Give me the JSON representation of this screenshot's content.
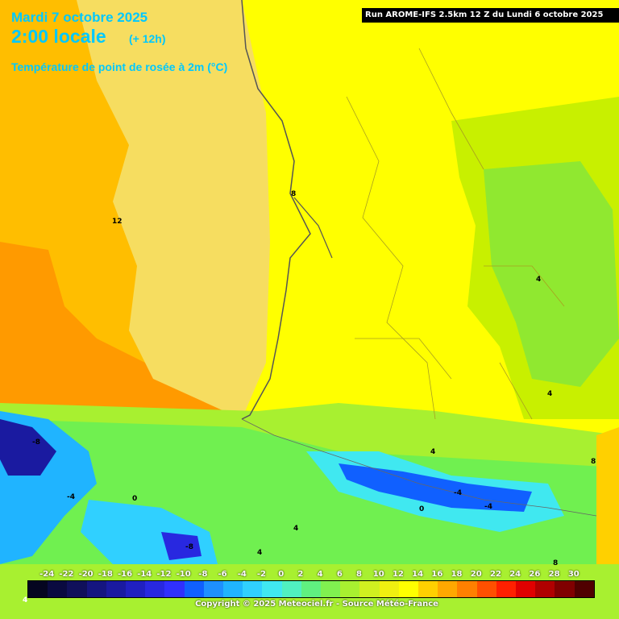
{
  "header": {
    "date": "Mardi 7 octobre 2025",
    "time": "2:00 locale",
    "offset": "(+ 12h)",
    "parameter": "Température de point de rosée à 2m (°C)"
  },
  "run_info": "Run AROME-IFS 2.5km 12 Z du Lundi 6 octobre 2025",
  "legend": {
    "ticks": [
      "-24",
      "-22",
      "-20",
      "-18",
      "-16",
      "-14",
      "-12",
      "-10",
      "-8",
      "-6",
      "-4",
      "-2",
      "0",
      "2",
      "4",
      "6",
      "8",
      "10",
      "12",
      "14",
      "16",
      "18",
      "20",
      "22",
      "24",
      "26",
      "28",
      "30"
    ],
    "colors": [
      "#050520",
      "#0a0a40",
      "#10105a",
      "#151580",
      "#1a1aa0",
      "#2020c0",
      "#2828e0",
      "#3030ff",
      "#1060ff",
      "#1e90ff",
      "#20b4ff",
      "#30d0ff",
      "#40e8f0",
      "#50f0c0",
      "#60f080",
      "#80f050",
      "#a8f030",
      "#d0f020",
      "#f0f010",
      "#ffff00",
      "#ffd000",
      "#ffa800",
      "#ff8000",
      "#ff5000",
      "#ff2000",
      "#e00000",
      "#b00000",
      "#800000",
      "#500000"
    ],
    "bottom_label": "4"
  },
  "copyright": "Copyright © 2025 Meteociel.fr - Source Météo-France",
  "contour_labels": [
    "12",
    "8",
    "4",
    "4",
    "8",
    "-8",
    "-4",
    "0",
    "-4",
    "-4",
    "0",
    "4",
    "4",
    "-8",
    "8",
    "4"
  ]
}
